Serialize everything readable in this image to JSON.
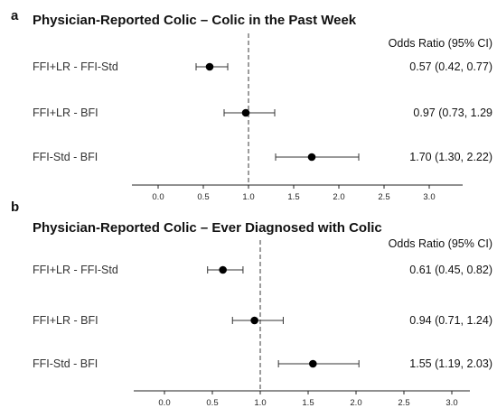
{
  "chart_data": [
    {
      "type": "forest",
      "panel_label": "a",
      "title": "Physician-Reported Colic – Colic in the Past Week",
      "value_header": "Odds Ratio (95% CI)",
      "reference_line": 1.0,
      "xlim": [
        -0.3,
        3.3
      ],
      "xticks": [
        "0.0",
        "0.5",
        "1.0",
        "1.5",
        "2.0",
        "2.5",
        "3.0"
      ],
      "xtick_values": [
        0,
        0.5,
        1.0,
        1.5,
        2.0,
        2.5,
        3.0
      ],
      "rows": [
        {
          "label": "FFI+LR - FFI-Std",
          "or": 0.57,
          "lower": 0.42,
          "upper": 0.77,
          "text": "0.57 (0.42, 0.77)"
        },
        {
          "label": "FFI+LR - BFI",
          "or": 0.97,
          "lower": 0.73,
          "upper": 1.29,
          "text": "0.97 (0.73, 1.29"
        },
        {
          "label": "FFI-Std - BFI",
          "or": 1.7,
          "lower": 1.3,
          "upper": 2.22,
          "text": "1.70 (1.30, 2.22)"
        }
      ]
    },
    {
      "type": "forest",
      "panel_label": "b",
      "title": "Physician-Reported Colic – Ever Diagnosed with Colic",
      "value_header": "Odds Ratio (95% CI)",
      "reference_line": 1.0,
      "xlim": [
        -0.3,
        3.3
      ],
      "xticks": [
        "0.0",
        "0.5",
        "1.0",
        "1.5",
        "2.0",
        "2.5",
        "3.0"
      ],
      "xtick_values": [
        0,
        0.5,
        1.0,
        1.5,
        2.0,
        2.5,
        3.0
      ],
      "rows": [
        {
          "label": "FFI+LR - FFI-Std",
          "or": 0.61,
          "lower": 0.45,
          "upper": 0.82,
          "text": "0.61 (0.45, 0.82)"
        },
        {
          "label": "FFI+LR - BFI",
          "or": 0.94,
          "lower": 0.71,
          "upper": 1.24,
          "text": "0.94 (0.71, 1.24)"
        },
        {
          "label": "FFI-Std - BFI",
          "or": 1.55,
          "lower": 1.19,
          "upper": 2.03,
          "text": "1.55 (1.19, 2.03)"
        }
      ]
    }
  ]
}
